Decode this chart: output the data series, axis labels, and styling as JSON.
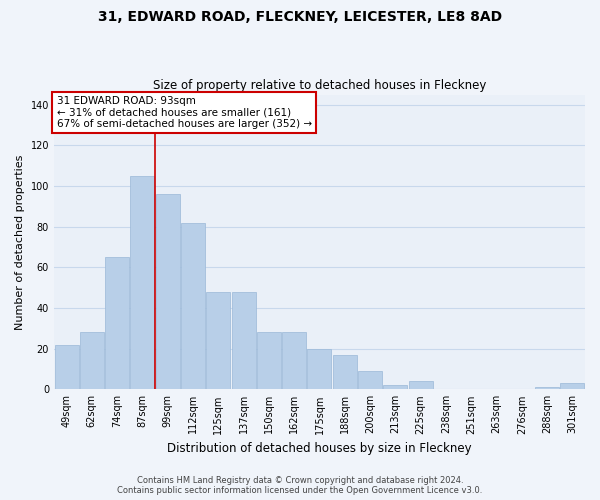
{
  "title": "31, EDWARD ROAD, FLECKNEY, LEICESTER, LE8 8AD",
  "subtitle": "Size of property relative to detached houses in Fleckney",
  "xlabel": "Distribution of detached houses by size in Fleckney",
  "ylabel": "Number of detached properties",
  "categories": [
    "49sqm",
    "62sqm",
    "74sqm",
    "87sqm",
    "99sqm",
    "112sqm",
    "125sqm",
    "137sqm",
    "150sqm",
    "162sqm",
    "175sqm",
    "188sqm",
    "200sqm",
    "213sqm",
    "225sqm",
    "238sqm",
    "251sqm",
    "263sqm",
    "276sqm",
    "288sqm",
    "301sqm"
  ],
  "values": [
    22,
    28,
    65,
    105,
    96,
    82,
    48,
    48,
    28,
    28,
    20,
    17,
    9,
    2,
    4,
    0,
    0,
    0,
    0,
    1,
    3
  ],
  "bar_color": "#b8cfe8",
  "bar_edge_color": "#9ab8d8",
  "vline_x_index": 3,
  "vline_color": "#cc0000",
  "ylim": [
    0,
    145
  ],
  "yticks": [
    0,
    20,
    40,
    60,
    80,
    100,
    120,
    140
  ],
  "annotation_title": "31 EDWARD ROAD: 93sqm",
  "annotation_line1": "← 31% of detached houses are smaller (161)",
  "annotation_line2": "67% of semi-detached houses are larger (352) →",
  "footer_line1": "Contains HM Land Registry data © Crown copyright and database right 2024.",
  "footer_line2": "Contains public sector information licensed under the Open Government Licence v3.0.",
  "background_color": "#f0f4fa",
  "plot_background_color": "#eaf0f8",
  "grid_color": "#c8d8ec"
}
